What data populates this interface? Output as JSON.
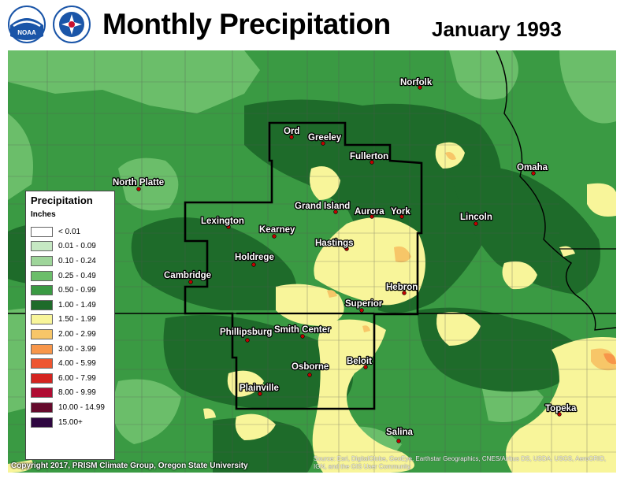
{
  "header": {
    "title": "Monthly Precipitation",
    "date": "January 1993"
  },
  "logos": [
    {
      "name": "noaa-logo",
      "text": "NOAA",
      "color": "#1a55a8"
    },
    {
      "name": "nws-logo",
      "text": "NATIONAL WEATHER SERVICE",
      "color": "#c8102e"
    }
  ],
  "legend": {
    "title": "Precipitation",
    "unit": "Inches",
    "items": [
      {
        "label": "< 0.01",
        "color": "#ffffff"
      },
      {
        "label": "0.01 - 0.09",
        "color": "#c6e8c3"
      },
      {
        "label": "0.10 - 0.24",
        "color": "#9ed59a"
      },
      {
        "label": "0.25 - 0.49",
        "color": "#6bbe6a"
      },
      {
        "label": "0.50 - 0.99",
        "color": "#3a9a43"
      },
      {
        "label": "1.00 - 1.49",
        "color": "#1e6b2a"
      },
      {
        "label": "1.50 - 1.99",
        "color": "#f8f59a"
      },
      {
        "label": "2.00 - 2.99",
        "color": "#f7c668"
      },
      {
        "label": "3.00 - 3.99",
        "color": "#f7964a"
      },
      {
        "label": "4.00 - 5.99",
        "color": "#ee5530"
      },
      {
        "label": "6.00 - 7.99",
        "color": "#d42420"
      },
      {
        "label": "8.00 - 9.99",
        "color": "#b00c32"
      },
      {
        "label": "10.00 - 14.99",
        "color": "#650a2c"
      },
      {
        "label": "15.00+",
        "color": "#2e0640"
      }
    ]
  },
  "cities": [
    {
      "name": "Norfolk"
    },
    {
      "name": "Ord"
    },
    {
      "name": "Greeley"
    },
    {
      "name": "Fullerton"
    },
    {
      "name": "North Platte"
    },
    {
      "name": "Omaha"
    },
    {
      "name": "Grand Island"
    },
    {
      "name": "Aurora"
    },
    {
      "name": "York"
    },
    {
      "name": "Lexington"
    },
    {
      "name": "Kearney"
    },
    {
      "name": "Lincoln"
    },
    {
      "name": "Hastings"
    },
    {
      "name": "Holdrege"
    },
    {
      "name": "Cambridge"
    },
    {
      "name": "Hebron"
    },
    {
      "name": "Superior"
    },
    {
      "name": "Phillipsburg"
    },
    {
      "name": "Smith Center"
    },
    {
      "name": "Beloit"
    },
    {
      "name": "Osborne"
    },
    {
      "name": "Plainville"
    },
    {
      "name": "Topeka"
    },
    {
      "name": "Salina"
    }
  ],
  "footer": {
    "copyright": "Copyright 2017, PRISM Climate Group, Oregon State University",
    "source": "Source: Esri, DigitalGlobe, GeoEye, Earthstar Geographics, CNES/Airbus DS, USDA, USGS, AeroGRID, IGN, and the GIS User Community"
  }
}
